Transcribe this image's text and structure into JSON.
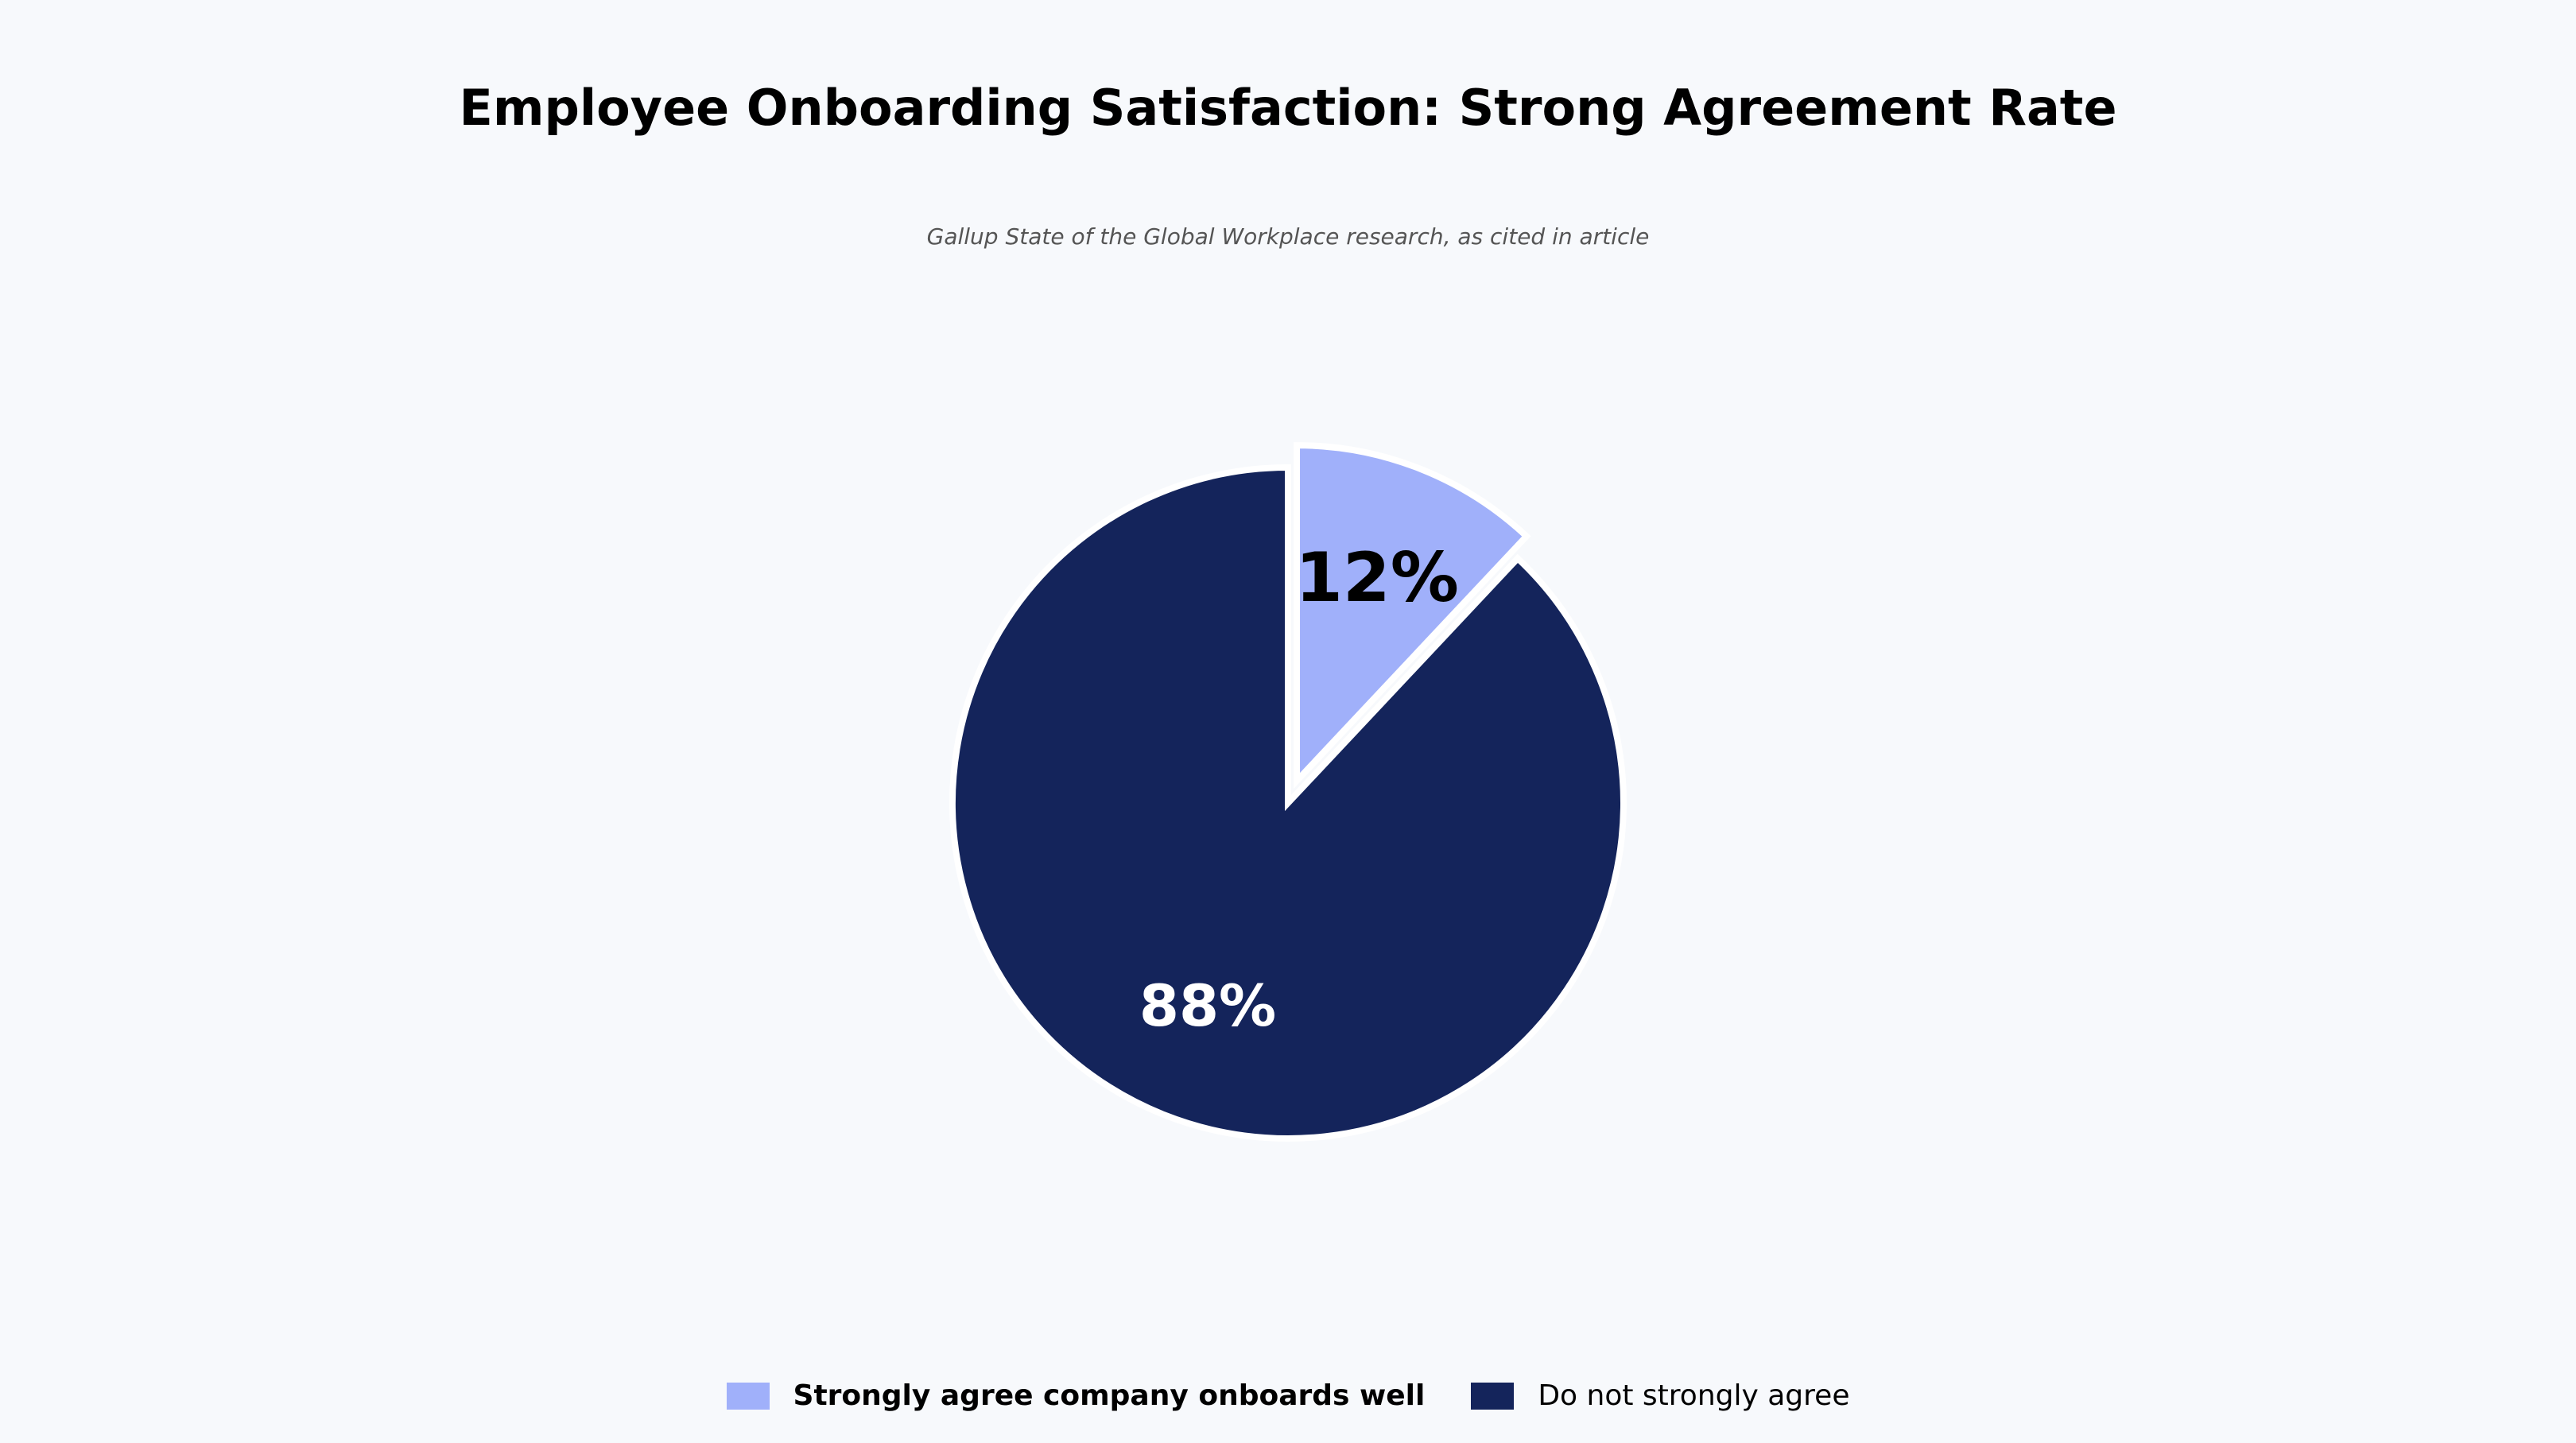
{
  "chart_data": {
    "type": "pie",
    "title": "Employee Onboarding Satisfaction: Strong Agreement Rate",
    "subtitle": "Gallup State of the Global Workplace research, as cited in article",
    "slices": [
      {
        "label": "Strongly agree company onboards well",
        "value": 12,
        "display": "12%",
        "color": "#a0b0fa",
        "label_color": "#000000",
        "exploded": true
      },
      {
        "label": "Do not strongly agree",
        "value": 88,
        "display": "88%",
        "color": "#14245b",
        "label_color": "#ffffff",
        "exploded": false
      }
    ],
    "start_angle": "12 o'clock",
    "direction": "clockwise",
    "legend_position": "bottom-center"
  }
}
